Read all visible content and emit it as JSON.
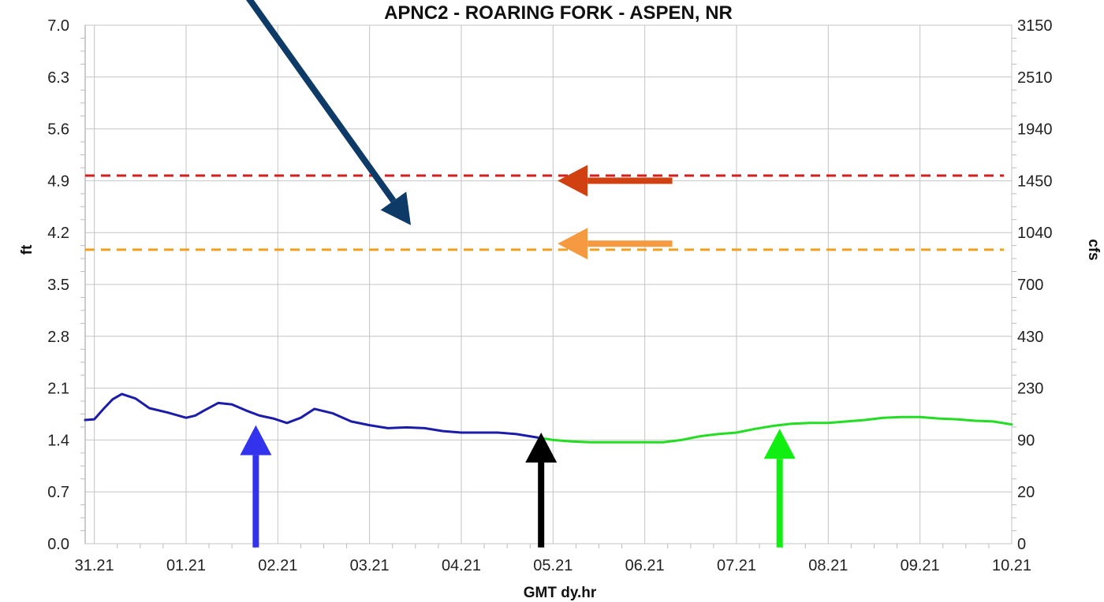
{
  "chart_data": {
    "type": "line",
    "title": "APNC2 - ROARING FORK - ASPEN, NR",
    "xlabel": "GMT dy.hr",
    "ylabel": "ft",
    "ylabel_right": "cfs",
    "ylim": [
      0.0,
      7.0
    ],
    "y_ticks": [
      "0.0",
      "0.7",
      "1.4",
      "2.1",
      "2.8",
      "3.5",
      "4.2",
      "4.9",
      "5.6",
      "6.3",
      "7.0"
    ],
    "y_ticks_right": [
      "0",
      "20",
      "90",
      "230",
      "430",
      "700",
      "1040",
      "1450",
      "1940",
      "2510",
      "3150"
    ],
    "x_ticks": [
      "31.21",
      "01.21",
      "02.21",
      "03.21",
      "04.21",
      "05.21",
      "06.21",
      "07.21",
      "08.21",
      "09.21",
      "10.21"
    ],
    "xlim": [
      -0.1,
      10
    ],
    "grid": true,
    "series": [
      {
        "role": "observed",
        "color": "#1c1caa",
        "x": [
          -0.1,
          0.0,
          0.1,
          0.2,
          0.3,
          0.45,
          0.6,
          0.8,
          1.0,
          1.1,
          1.2,
          1.35,
          1.5,
          1.65,
          1.8,
          1.95,
          2.1,
          2.25,
          2.4,
          2.6,
          2.8,
          3.0,
          3.2,
          3.4,
          3.6,
          3.8,
          4.0,
          4.2,
          4.4,
          4.6,
          4.85
        ],
        "y": [
          1.67,
          1.68,
          1.82,
          1.95,
          2.02,
          1.96,
          1.83,
          1.77,
          1.7,
          1.73,
          1.8,
          1.9,
          1.88,
          1.8,
          1.73,
          1.69,
          1.63,
          1.7,
          1.82,
          1.76,
          1.65,
          1.6,
          1.56,
          1.57,
          1.56,
          1.52,
          1.5,
          1.5,
          1.5,
          1.48,
          1.43
        ]
      },
      {
        "role": "forecast",
        "color": "#22dd22",
        "x": [
          4.85,
          5.0,
          5.2,
          5.4,
          5.6,
          5.8,
          6.0,
          6.2,
          6.4,
          6.6,
          6.8,
          7.0,
          7.2,
          7.4,
          7.6,
          7.8,
          8.0,
          8.2,
          8.4,
          8.6,
          8.8,
          9.0,
          9.2,
          9.4,
          9.6,
          9.8,
          10.0
        ],
        "y": [
          1.43,
          1.4,
          1.38,
          1.37,
          1.37,
          1.37,
          1.37,
          1.37,
          1.4,
          1.45,
          1.48,
          1.5,
          1.55,
          1.59,
          1.62,
          1.63,
          1.63,
          1.65,
          1.67,
          1.7,
          1.71,
          1.71,
          1.69,
          1.68,
          1.66,
          1.65,
          1.61
        ]
      }
    ],
    "thresholds": [
      {
        "role": "flood",
        "value": 4.97,
        "color": "#d42020"
      },
      {
        "role": "action",
        "value": 3.97,
        "color": "#f0a020"
      }
    ],
    "annotations": [
      {
        "type": "arrow",
        "color": "#0d3a66",
        "from": [
          1.2,
          8.2
        ],
        "to": [
          3.45,
          4.3
        ]
      },
      {
        "type": "arrow",
        "color": "#d04010",
        "from": [
          6.3,
          4.9
        ],
        "to": [
          5.05,
          4.9
        ]
      },
      {
        "type": "arrow",
        "color": "#f59a40",
        "from": [
          6.3,
          4.05
        ],
        "to": [
          5.05,
          4.05
        ]
      },
      {
        "type": "arrow",
        "color": "#3333ee",
        "from": [
          1.76,
          -0.05
        ],
        "to": [
          1.76,
          1.6
        ]
      },
      {
        "type": "arrow",
        "color": "#000000",
        "from": [
          4.87,
          -0.05
        ],
        "to": [
          4.87,
          1.5
        ]
      },
      {
        "type": "arrow",
        "color": "#11ee11",
        "from": [
          7.47,
          -0.05
        ],
        "to": [
          7.47,
          1.55
        ]
      }
    ]
  }
}
